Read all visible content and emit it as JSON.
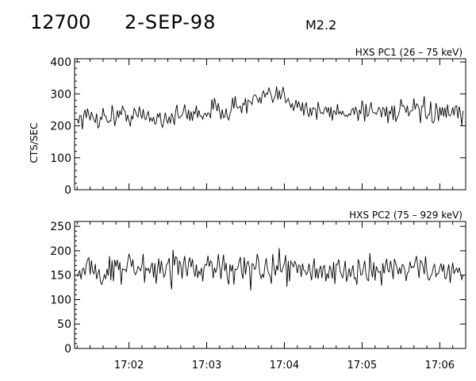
{
  "header": {
    "event_id": "12700",
    "date": "2-SEP-98",
    "flare_class": "M2.2"
  },
  "chart_data": [
    {
      "type": "line",
      "title": "HXS PC1 (26 – 75 keV)",
      "ylabel": "CTS/SEC",
      "xlabel": "",
      "ylim": [
        0,
        410
      ],
      "yticks": [
        0,
        100,
        200,
        300,
        400
      ],
      "xlim": [
        "17:01:18",
        "17:06:20"
      ],
      "xticks": [
        "17:02",
        "17:03",
        "17:04",
        "17:05",
        "17:06"
      ],
      "grid": false,
      "series": [
        {
          "x": [
            "17:01:20",
            "17:01:40",
            "17:02:00",
            "17:02:20",
            "17:02:40",
            "17:03:00",
            "17:03:20",
            "17:03:40",
            "17:04:00",
            "17:04:20",
            "17:04:40",
            "17:05:00",
            "17:05:20",
            "17:05:40",
            "17:06:00",
            "17:06:18"
          ],
          "values": [
            225,
            228,
            235,
            225,
            232,
            245,
            255,
            280,
            295,
            248,
            240,
            250,
            245,
            245,
            238,
            232
          ],
          "noise": 18
        }
      ]
    },
    {
      "type": "line",
      "title": "HXS PC2 (75 – 929 keV)",
      "ylabel": "",
      "xlabel": "",
      "ylim": [
        0,
        260
      ],
      "yticks": [
        0,
        50,
        100,
        150,
        200,
        250
      ],
      "xlim": [
        "17:01:18",
        "17:06:20"
      ],
      "xticks": [
        "17:02",
        "17:03",
        "17:04",
        "17:05",
        "17:06"
      ],
      "grid": false,
      "series": [
        {
          "x": [
            "17:01:20",
            "17:02:00",
            "17:02:40",
            "17:03:20",
            "17:04:00",
            "17:04:40",
            "17:05:20",
            "17:06:00",
            "17:06:18"
          ],
          "values": [
            162,
            165,
            160,
            163,
            162,
            160,
            163,
            160,
            158
          ],
          "noise": 15
        }
      ]
    }
  ]
}
